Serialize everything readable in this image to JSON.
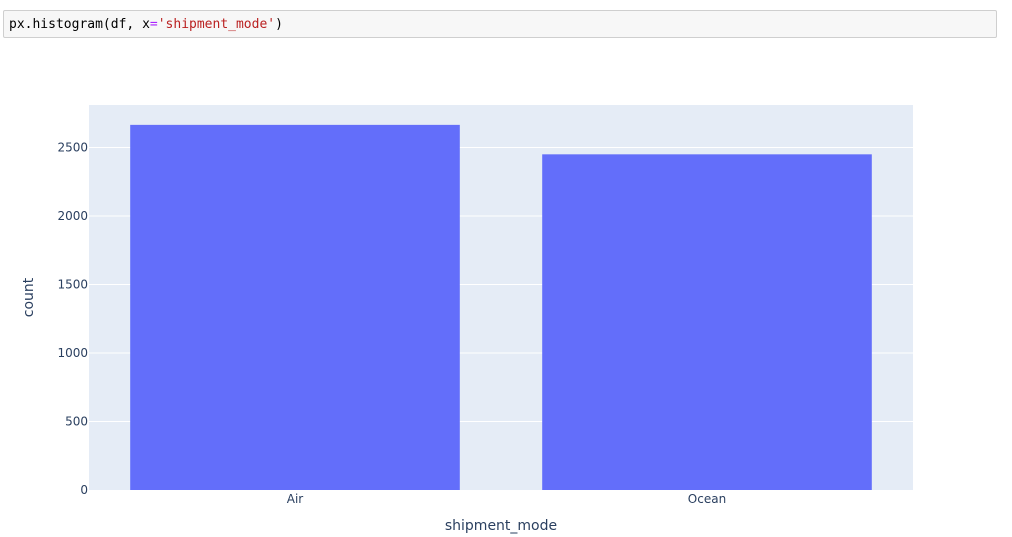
{
  "code_cell": {
    "func": "px.histogram",
    "arg_df": "df",
    "arg_kw": "x",
    "arg_value": "'shipment_mode'"
  },
  "colors": {
    "plot_bg": "#e5ecf6",
    "grid": "#ffffff",
    "bar": "#636efa",
    "axis_text": "#2a3f5f"
  },
  "chart_data": {
    "type": "bar",
    "categories": [
      "Air",
      "Ocean"
    ],
    "values": [
      2665,
      2450
    ],
    "title": "",
    "xlabel": "shipment_mode",
    "ylabel": "count",
    "ylim": [
      0,
      2810
    ],
    "yticks": [
      0,
      500,
      1000,
      1500,
      2000,
      2500
    ],
    "grid": true
  }
}
